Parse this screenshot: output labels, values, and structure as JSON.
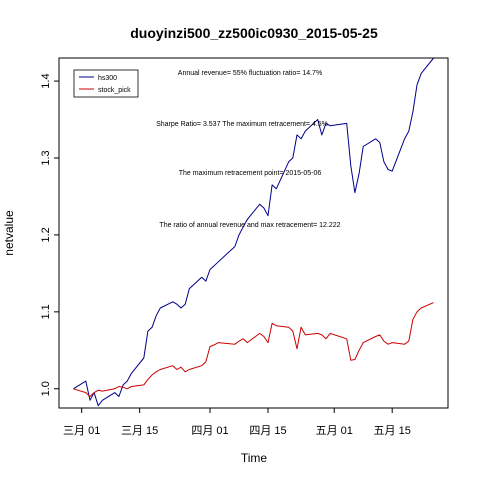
{
  "chart_data": {
    "type": "line",
    "title": "duoyinzi500_zz500ic0930_2015-05-25",
    "xlabel": "Time",
    "ylabel": "netvalue",
    "ylim": [
      0.975,
      1.43
    ],
    "y_ticks": [
      1.0,
      1.1,
      1.2,
      1.3,
      1.4
    ],
    "y_tick_labels": [
      "1.0",
      "1.1",
      "1.2",
      "1.3",
      "1.4"
    ],
    "x_ticks": [
      "2015-03-01",
      "2015-03-15",
      "2015-04-01",
      "2015-04-15",
      "2015-05-01",
      "2015-05-15"
    ],
    "x_tick_labels": [
      "三月 01",
      "三月 15",
      "四月 01",
      "四月 15",
      "五月 01",
      "五月 15"
    ],
    "grid": false,
    "legend_position": "top-left",
    "annotations": [
      "Annual revenue=  55% fluctuation ratio= 14.7%",
      "Sharpe Ratio= 3.537 The maximum retracement= 4.5%",
      "The maximum retracement point= 2015-05-06",
      "The ratio of annual revenue and max retracement= 12.222"
    ],
    "series": [
      {
        "name": "hs300",
        "color": "#00008B",
        "x": [
          "2015-02-27",
          "2015-03-02",
          "2015-03-03",
          "2015-03-04",
          "2015-03-05",
          "2015-03-06",
          "2015-03-09",
          "2015-03-10",
          "2015-03-11",
          "2015-03-12",
          "2015-03-13",
          "2015-03-16",
          "2015-03-17",
          "2015-03-18",
          "2015-03-19",
          "2015-03-20",
          "2015-03-23",
          "2015-03-24",
          "2015-03-25",
          "2015-03-26",
          "2015-03-27",
          "2015-03-30",
          "2015-03-31",
          "2015-04-01",
          "2015-04-02",
          "2015-04-03",
          "2015-04-07",
          "2015-04-08",
          "2015-04-09",
          "2015-04-10",
          "2015-04-13",
          "2015-04-14",
          "2015-04-15",
          "2015-04-16",
          "2015-04-17",
          "2015-04-20",
          "2015-04-21",
          "2015-04-22",
          "2015-04-23",
          "2015-04-24",
          "2015-04-27",
          "2015-04-28",
          "2015-04-29",
          "2015-04-30",
          "2015-05-04",
          "2015-05-05",
          "2015-05-06",
          "2015-05-07",
          "2015-05-08",
          "2015-05-11",
          "2015-05-12",
          "2015-05-13",
          "2015-05-14",
          "2015-05-15",
          "2015-05-18",
          "2015-05-19",
          "2015-05-20",
          "2015-05-21",
          "2015-05-22",
          "2015-05-25"
        ],
        "values": [
          1.0,
          1.01,
          0.985,
          0.995,
          0.978,
          0.985,
          0.995,
          0.99,
          1.005,
          1.01,
          1.02,
          1.04,
          1.075,
          1.08,
          1.095,
          1.105,
          1.113,
          1.11,
          1.105,
          1.11,
          1.13,
          1.145,
          1.14,
          1.155,
          1.16,
          1.165,
          1.185,
          1.2,
          1.21,
          1.22,
          1.24,
          1.235,
          1.225,
          1.265,
          1.26,
          1.295,
          1.3,
          1.33,
          1.325,
          1.335,
          1.35,
          1.33,
          1.345,
          1.342,
          1.345,
          1.29,
          1.255,
          1.28,
          1.315,
          1.325,
          1.32,
          1.295,
          1.285,
          1.283,
          1.325,
          1.335,
          1.36,
          1.395,
          1.41,
          1.43
        ]
      },
      {
        "name": "stock_pick",
        "color": "#CC0000",
        "x": [
          "2015-02-27",
          "2015-03-02",
          "2015-03-03",
          "2015-03-04",
          "2015-03-05",
          "2015-03-06",
          "2015-03-09",
          "2015-03-10",
          "2015-03-11",
          "2015-03-12",
          "2015-03-13",
          "2015-03-16",
          "2015-03-17",
          "2015-03-18",
          "2015-03-19",
          "2015-03-20",
          "2015-03-23",
          "2015-03-24",
          "2015-03-25",
          "2015-03-26",
          "2015-03-27",
          "2015-03-30",
          "2015-03-31",
          "2015-04-01",
          "2015-04-02",
          "2015-04-03",
          "2015-04-07",
          "2015-04-08",
          "2015-04-09",
          "2015-04-10",
          "2015-04-13",
          "2015-04-14",
          "2015-04-15",
          "2015-04-16",
          "2015-04-17",
          "2015-04-20",
          "2015-04-21",
          "2015-04-22",
          "2015-04-23",
          "2015-04-24",
          "2015-04-27",
          "2015-04-28",
          "2015-04-29",
          "2015-04-30",
          "2015-05-04",
          "2015-05-05",
          "2015-05-06",
          "2015-05-07",
          "2015-05-08",
          "2015-05-11",
          "2015-05-12",
          "2015-05-13",
          "2015-05-14",
          "2015-05-15",
          "2015-05-18",
          "2015-05-19",
          "2015-05-20",
          "2015-05-21",
          "2015-05-22",
          "2015-05-25"
        ],
        "values": [
          1.0,
          0.995,
          0.99,
          0.995,
          0.998,
          0.997,
          1.0,
          1.003,
          1.002,
          1.0,
          1.003,
          1.005,
          1.012,
          1.018,
          1.022,
          1.025,
          1.03,
          1.025,
          1.028,
          1.022,
          1.025,
          1.03,
          1.035,
          1.055,
          1.057,
          1.06,
          1.058,
          1.062,
          1.065,
          1.06,
          1.072,
          1.068,
          1.06,
          1.085,
          1.082,
          1.08,
          1.075,
          1.052,
          1.08,
          1.07,
          1.072,
          1.07,
          1.065,
          1.072,
          1.065,
          1.037,
          1.038,
          1.05,
          1.06,
          1.068,
          1.07,
          1.062,
          1.058,
          1.06,
          1.058,
          1.062,
          1.09,
          1.1,
          1.105,
          1.112
        ]
      }
    ]
  }
}
